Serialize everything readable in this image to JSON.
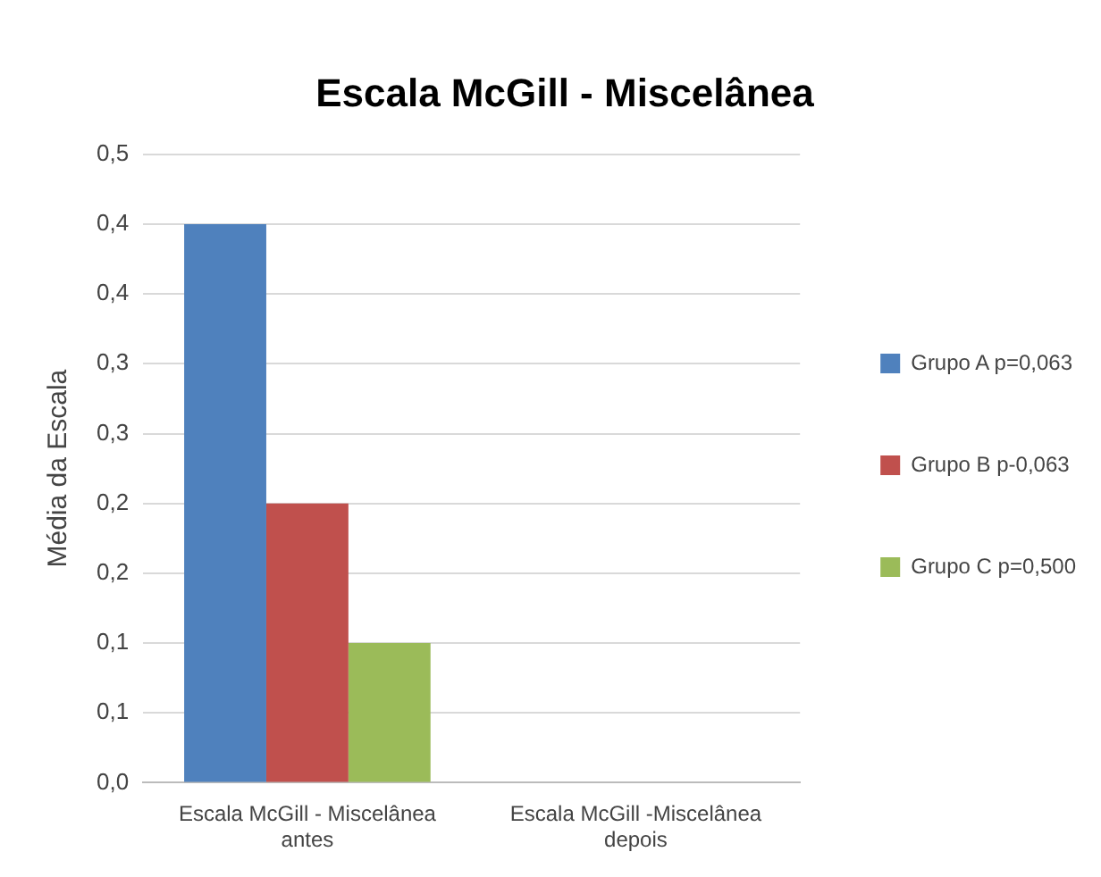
{
  "chart_data": {
    "type": "bar",
    "title": "Escala McGill - Miscelânea",
    "ylabel": "Média da Escala",
    "categories": [
      "Escala McGill - Miscelânea antes",
      "Escala McGill -Miscelânea depois"
    ],
    "series": [
      {
        "name": "Grupo A p=0,063",
        "color": "#4f81bd",
        "values": [
          0.4,
          0
        ]
      },
      {
        "name": "Grupo B p-0,063",
        "color": "#c0504d",
        "values": [
          0.2,
          0
        ]
      },
      {
        "name": "Grupo C p=0,500",
        "color": "#9bbb59",
        "values": [
          0.1,
          0
        ]
      }
    ],
    "ylim": [
      0,
      0.45
    ],
    "yticks": [
      {
        "value": 0,
        "label": "0,0"
      },
      {
        "value": 0.05,
        "label": "0,1"
      },
      {
        "value": 0.1,
        "label": "0,1"
      },
      {
        "value": 0.15,
        "label": "0,2"
      },
      {
        "value": 0.2,
        "label": "0,2"
      },
      {
        "value": 0.25,
        "label": "0,3"
      },
      {
        "value": 0.3,
        "label": "0,3"
      },
      {
        "value": 0.35,
        "label": "0,4"
      },
      {
        "value": 0.4,
        "label": "0,4"
      },
      {
        "value": 0.45,
        "label": "0,5"
      }
    ],
    "grid": "y",
    "legend": "right"
  }
}
